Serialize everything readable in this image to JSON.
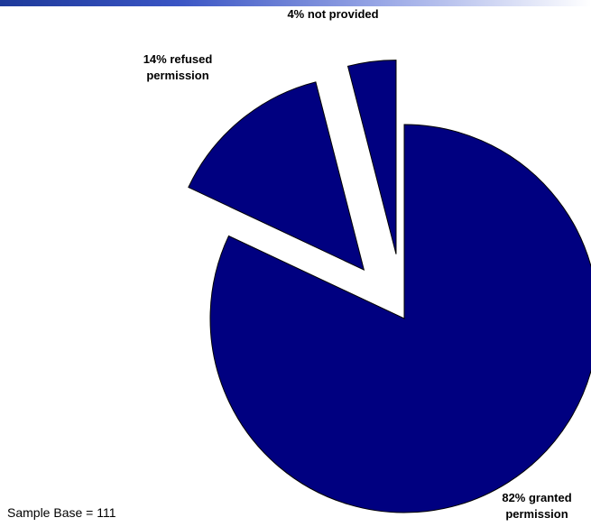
{
  "colors": {
    "slice_fill": "#000080",
    "header_rule": "#2a44b0"
  },
  "footer": {
    "sample_base": "Sample  Base = 111"
  },
  "chart_data": {
    "type": "pie",
    "exploded": true,
    "slices": [
      {
        "value": 82,
        "label_lines": [
          "82% granted",
          "permission"
        ]
      },
      {
        "value": 14,
        "label_lines": [
          "14% refused",
          "permission"
        ]
      },
      {
        "value": 4,
        "label_lines": [
          "4% not provided"
        ]
      }
    ]
  }
}
